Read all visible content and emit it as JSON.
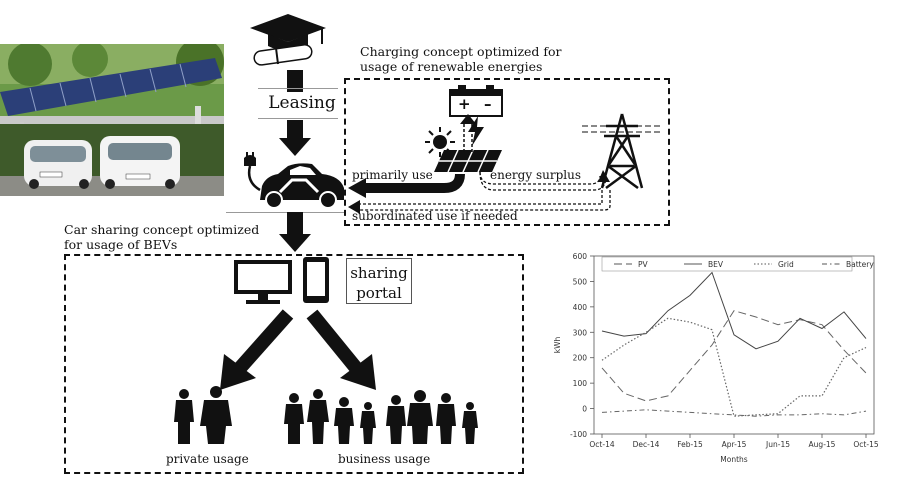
{
  "diagram": {
    "leasing_label": "Leasing",
    "charging_caption_line1": "Charging concept optimized for",
    "charging_caption_line2": "usage of renewable energies",
    "primarily_use": "primarily use",
    "energy_surplus": "energy surplus",
    "subordinated_use": "subordinated use if needed",
    "carsharing_caption_line1": "Car sharing concept optimized",
    "carsharing_caption_line2": "for usage of BEVs",
    "portal_line1": "sharing",
    "portal_line2": "portal",
    "private_usage": "private usage",
    "business_usage": "business usage",
    "battery_plus": "+",
    "battery_minus": "–"
  },
  "chart_data": {
    "type": "line",
    "xlabel": "Months",
    "ylabel": "kWh",
    "ylim": [
      -100,
      600
    ],
    "yticks": [
      -100,
      0,
      100,
      200,
      300,
      400,
      500,
      600
    ],
    "x": [
      "Oct-14",
      "Nov-14",
      "Dec-14",
      "Jan-15",
      "Feb-15",
      "Mar-15",
      "Apr-15",
      "May-15",
      "Jun-15",
      "Jul-15",
      "Aug-15",
      "Sep-15",
      "Oct-15"
    ],
    "xticks": [
      "Oct-14",
      "Dec-14",
      "Feb-15",
      "Apr-15",
      "Jun-15",
      "Aug-15",
      "Oct-15"
    ],
    "legend_position": "top",
    "grid": false,
    "series": [
      {
        "name": "PV",
        "style": "longdash",
        "values": [
          160,
          60,
          30,
          50,
          150,
          250,
          385,
          360,
          330,
          350,
          330,
          230,
          140
        ]
      },
      {
        "name": "BEV",
        "style": "solid",
        "values": [
          305,
          285,
          295,
          385,
          445,
          535,
          290,
          235,
          265,
          355,
          315,
          380,
          275
        ]
      },
      {
        "name": "Grid",
        "style": "dotted",
        "values": [
          190,
          250,
          300,
          355,
          340,
          310,
          -30,
          -25,
          -20,
          50,
          50,
          200,
          240
        ]
      },
      {
        "name": "Battery",
        "style": "dotdash",
        "values": [
          -15,
          -10,
          -5,
          -10,
          -15,
          -20,
          -25,
          -30,
          -25,
          -25,
          -20,
          -25,
          -10
        ]
      }
    ]
  }
}
